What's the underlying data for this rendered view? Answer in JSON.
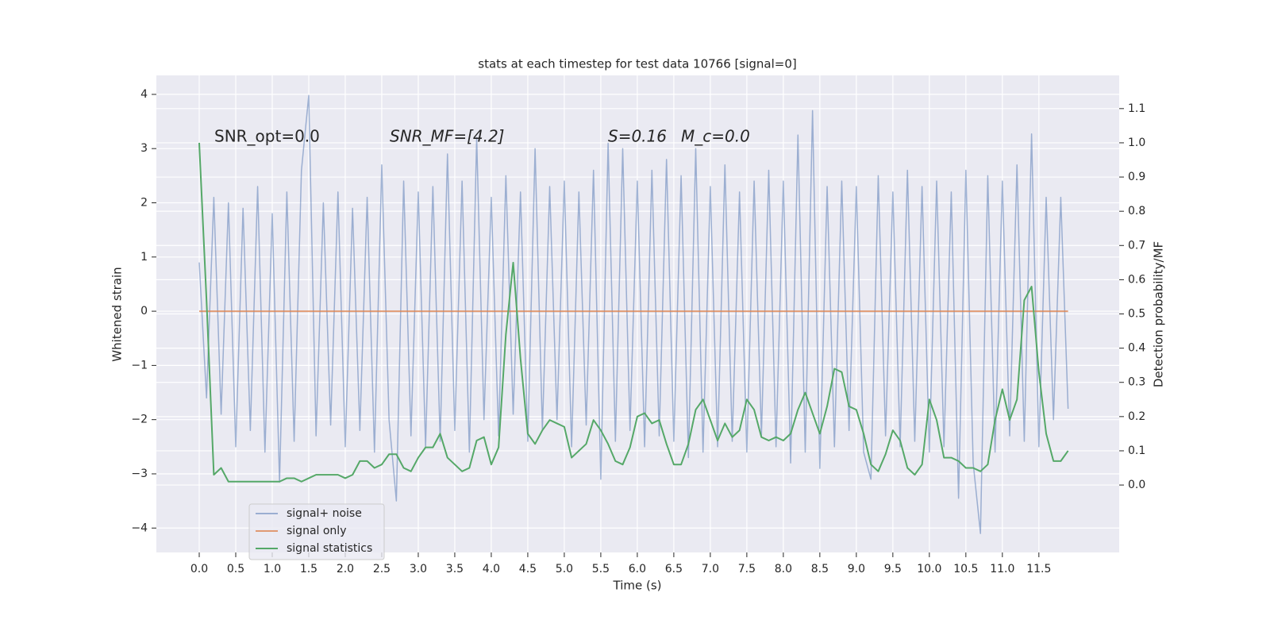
{
  "chart_data": {
    "type": "line",
    "title": "stats at each timestep for test data 10766 [signal=0]",
    "xlabel": "Time (s)",
    "ylabel": "Whitened strain",
    "y2label": "Detection probability/MF",
    "annotations": [
      "SNR_opt=0.0",
      "SNR_MF=[4.2]",
      "S=0.16",
      "M_c=0.0"
    ],
    "grid": true,
    "legend": "lower left",
    "xlim": [
      -0.587,
      12.6
    ],
    "ylim": [
      -4.45,
      4.35
    ],
    "y2lim": [
      -0.197,
      1.197
    ],
    "xticks": [
      {
        "value": 0,
        "label": "0.0"
      },
      0.5,
      {
        "value": 1,
        "label": "1.0"
      },
      1.5,
      {
        "value": 2,
        "label": "2.0"
      },
      2.5,
      {
        "value": 3,
        "label": "3.0"
      },
      3.5,
      {
        "value": 4,
        "label": "4.0"
      },
      4.5,
      {
        "value": 5,
        "label": "5.0"
      },
      5.5,
      {
        "value": 6,
        "label": "6.0"
      },
      6.5,
      {
        "value": 7,
        "label": "7.0"
      },
      7.5,
      {
        "value": 8,
        "label": "8.0"
      },
      8.5,
      {
        "value": 9,
        "label": "9.0"
      },
      9.5,
      {
        "value": 10,
        "label": "10.0"
      },
      10.5,
      {
        "value": 11,
        "label": "11.0"
      },
      11.5
    ],
    "yticks": [
      {
        "value": -4,
        "label": "−4"
      },
      {
        "value": -3,
        "label": "−3"
      },
      {
        "value": -2,
        "label": "−2"
      },
      {
        "value": -1,
        "label": "−1"
      },
      0,
      1,
      2,
      3,
      4
    ],
    "y2ticks": [
      {
        "value": 0,
        "label": "0.0"
      },
      0.1,
      0.2,
      0.3,
      0.4,
      0.5,
      0.6,
      0.7,
      0.8,
      0.9,
      {
        "value": 1,
        "label": "1.0"
      },
      1.1
    ],
    "x": [
      0,
      0.1,
      0.2,
      0.3,
      0.4,
      0.5,
      0.6,
      0.7,
      0.8,
      0.9,
      1,
      1.1,
      1.2,
      1.3,
      1.4,
      1.5,
      1.6,
      1.7,
      1.8,
      1.9,
      2,
      2.1,
      2.2,
      2.3,
      2.4,
      2.5,
      2.6,
      2.7,
      2.8,
      2.9,
      3,
      3.1,
      3.2,
      3.3,
      3.4,
      3.5,
      3.6,
      3.7,
      3.8,
      3.9,
      4,
      4.1,
      4.2,
      4.3,
      4.4,
      4.5,
      4.6,
      4.7,
      4.8,
      4.9,
      5,
      5.1,
      5.2,
      5.3,
      5.4,
      5.5,
      5.6,
      5.7,
      5.8,
      5.9,
      6,
      6.1,
      6.2,
      6.3,
      6.4,
      6.5,
      6.6,
      6.7,
      6.8,
      6.9,
      7,
      7.1,
      7.2,
      7.3,
      7.4,
      7.5,
      7.6,
      7.7,
      7.8,
      7.9,
      8,
      8.1,
      8.2,
      8.3,
      8.4,
      8.5,
      8.6,
      8.7,
      8.8,
      8.9,
      9,
      9.1,
      9.2,
      9.3,
      9.4,
      9.5,
      9.6,
      9.7,
      9.8,
      9.9,
      10,
      10.1,
      10.2,
      10.3,
      10.4,
      10.5,
      10.6,
      10.7,
      10.8,
      10.9,
      11,
      11.1,
      11.2,
      11.3,
      11.4,
      11.5,
      11.6,
      11.7,
      11.8,
      11.9
    ],
    "series": [
      {
        "name": "signal+ noise",
        "color": "#4c72b0",
        "values": [
          0.9,
          -1.6,
          2.1,
          -1.9,
          2.0,
          -2.5,
          1.9,
          -2.2,
          2.3,
          -2.6,
          1.8,
          -3.15,
          2.2,
          -2.4,
          2.6,
          3.98,
          -2.3,
          2.0,
          -2.1,
          2.2,
          -2.5,
          1.9,
          -2.2,
          2.1,
          -2.6,
          2.7,
          -2.0,
          -3.5,
          2.4,
          -2.3,
          2.2,
          -2.5,
          2.3,
          -2.4,
          2.9,
          -2.2,
          2.4,
          -2.6,
          3.2,
          -2.0,
          2.1,
          -2.3,
          2.5,
          -1.9,
          2.2,
          -2.4,
          3.0,
          -2.2,
          2.3,
          -2.0,
          2.4,
          -2.5,
          2.2,
          -2.1,
          2.6,
          -3.1,
          3.1,
          -2.4,
          3.0,
          -2.2,
          2.4,
          -2.5,
          2.6,
          -2.3,
          2.8,
          -2.4,
          2.5,
          -2.7,
          3.0,
          -2.6,
          2.3,
          -2.5,
          2.7,
          -2.4,
          2.2,
          -2.6,
          2.4,
          -2.3,
          2.6,
          -2.5,
          2.4,
          -2.8,
          3.25,
          -2.6,
          3.7,
          -2.9,
          2.3,
          -2.5,
          2.4,
          -2.2,
          2.3,
          -2.6,
          -3.1,
          2.5,
          -2.3,
          2.2,
          -2.5,
          2.6,
          -2.4,
          2.3,
          -2.6,
          2.4,
          -2.5,
          2.2,
          -3.45,
          2.6,
          -2.8,
          -4.1,
          2.5,
          -2.6,
          2.4,
          -2.3,
          2.7,
          -2.4,
          3.27,
          -2.5,
          2.1,
          -2.0,
          2.1,
          -1.8
        ]
      },
      {
        "name": "signal only",
        "color": "#dd8452",
        "x": [
          0,
          11.9
        ],
        "values": [
          0,
          0
        ]
      },
      {
        "name": "signal statistics",
        "color": "#55a868",
        "axis": "y2",
        "values": [
          1.0,
          0.54,
          0.03,
          0.05,
          0.01,
          0.01,
          0.01,
          0.01,
          0.01,
          0.01,
          0.01,
          0.01,
          0.02,
          0.02,
          0.01,
          0.02,
          0.03,
          0.03,
          0.03,
          0.03,
          0.02,
          0.03,
          0.07,
          0.07,
          0.05,
          0.06,
          0.09,
          0.09,
          0.05,
          0.04,
          0.08,
          0.11,
          0.11,
          0.15,
          0.08,
          0.06,
          0.04,
          0.05,
          0.13,
          0.14,
          0.06,
          0.11,
          0.44,
          0.65,
          0.37,
          0.15,
          0.12,
          0.16,
          0.19,
          0.18,
          0.17,
          0.08,
          0.1,
          0.12,
          0.19,
          0.16,
          0.12,
          0.07,
          0.06,
          0.11,
          0.2,
          0.21,
          0.18,
          0.19,
          0.12,
          0.06,
          0.06,
          0.12,
          0.22,
          0.25,
          0.19,
          0.13,
          0.18,
          0.14,
          0.16,
          0.25,
          0.22,
          0.14,
          0.13,
          0.14,
          0.13,
          0.15,
          0.22,
          0.27,
          0.21,
          0.15,
          0.23,
          0.34,
          0.33,
          0.23,
          0.22,
          0.15,
          0.06,
          0.04,
          0.09,
          0.16,
          0.13,
          0.05,
          0.03,
          0.06,
          0.25,
          0.19,
          0.08,
          0.08,
          0.07,
          0.05,
          0.05,
          0.04,
          0.06,
          0.19,
          0.28,
          0.19,
          0.25,
          0.54,
          0.58,
          0.33,
          0.15,
          0.07,
          0.07,
          0.1
        ]
      }
    ]
  }
}
